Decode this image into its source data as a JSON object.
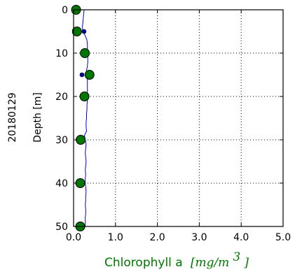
{
  "side_label": "20180129",
  "chart_data": {
    "type": "scatter",
    "xlabel": "Chlorophyll a",
    "xlabel_unit": "[mg/m",
    "xlabel_unit_sup": "3",
    "xlabel_unit_close": " ]",
    "ylabel": "Depth [m]",
    "xlim": [
      0,
      5
    ],
    "ylim": [
      50,
      0
    ],
    "y_inverted": true,
    "grid": true,
    "grid_style": "dotted",
    "x_ticks": [
      "0.0",
      "1.0",
      "2.0",
      "3.0",
      "4.0",
      "5.0"
    ],
    "y_ticks": [
      "0",
      "10",
      "20",
      "30",
      "40",
      "50"
    ],
    "colors": {
      "profile_line": "#0000ff",
      "large_markers": "#007700",
      "small_markers": "#0000aa",
      "xlabel": "#007700",
      "axis": "#000000"
    },
    "series": [
      {
        "role": "profile_line",
        "points": [
          [
            0.25,
            0.0
          ],
          [
            0.24,
            1.0
          ],
          [
            0.23,
            2.0
          ],
          [
            0.22,
            3.0
          ],
          [
            0.21,
            4.0
          ],
          [
            0.22,
            5.0
          ],
          [
            0.28,
            6.0
          ],
          [
            0.32,
            7.0
          ],
          [
            0.33,
            8.0
          ],
          [
            0.33,
            9.0
          ],
          [
            0.33,
            10.0
          ],
          [
            0.34,
            11.0
          ],
          [
            0.34,
            12.0
          ],
          [
            0.33,
            13.0
          ],
          [
            0.31,
            14.0
          ],
          [
            0.32,
            15.0
          ],
          [
            0.33,
            16.0
          ],
          [
            0.33,
            17.0
          ],
          [
            0.33,
            18.0
          ],
          [
            0.33,
            19.0
          ],
          [
            0.33,
            20.0
          ],
          [
            0.33,
            21.0
          ],
          [
            0.32,
            22.0
          ],
          [
            0.32,
            23.0
          ],
          [
            0.31,
            24.0
          ],
          [
            0.31,
            25.0
          ],
          [
            0.3,
            26.0
          ],
          [
            0.3,
            27.0
          ],
          [
            0.31,
            28.0
          ],
          [
            0.26,
            29.0
          ],
          [
            0.28,
            30.0
          ],
          [
            0.3,
            31.0
          ],
          [
            0.29,
            32.0
          ],
          [
            0.28,
            33.0
          ],
          [
            0.29,
            34.0
          ],
          [
            0.3,
            35.0
          ],
          [
            0.29,
            36.0
          ],
          [
            0.28,
            37.0
          ],
          [
            0.29,
            38.0
          ],
          [
            0.28,
            39.0
          ],
          [
            0.28,
            40.0
          ],
          [
            0.29,
            41.0
          ],
          [
            0.3,
            42.0
          ],
          [
            0.29,
            43.0
          ],
          [
            0.29,
            44.0
          ],
          [
            0.28,
            45.0
          ],
          [
            0.29,
            46.0
          ],
          [
            0.29,
            47.0
          ],
          [
            0.28,
            48.0
          ],
          [
            0.28,
            49.0
          ],
          [
            0.28,
            50.0
          ]
        ]
      },
      {
        "role": "large_markers",
        "points": [
          [
            0.06,
            0
          ],
          [
            0.08,
            5
          ],
          [
            0.27,
            10
          ],
          [
            0.38,
            15
          ],
          [
            0.26,
            20
          ],
          [
            0.17,
            30
          ],
          [
            0.16,
            40
          ],
          [
            0.16,
            50
          ]
        ]
      },
      {
        "role": "small_markers",
        "points": [
          [
            0.25,
            5
          ],
          [
            0.2,
            15
          ]
        ]
      }
    ]
  }
}
